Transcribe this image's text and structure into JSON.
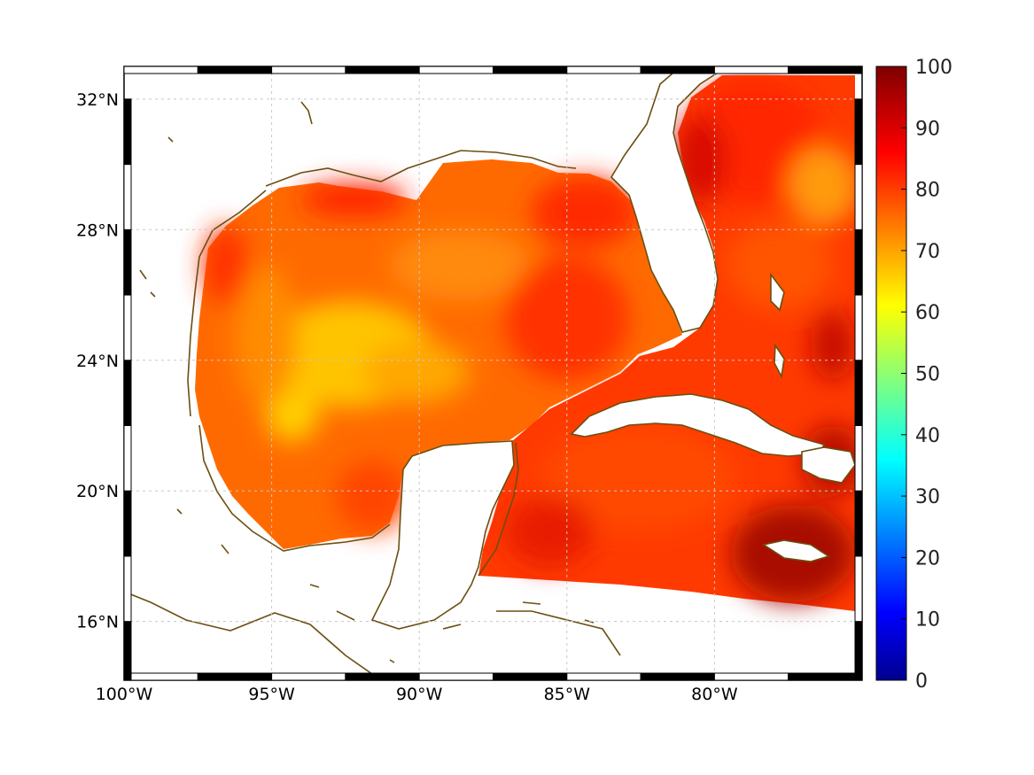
{
  "map": {
    "lon_range": [
      -100,
      -75
    ],
    "lat_range": [
      14.2,
      33
    ],
    "lon_ticks": [
      {
        "value": -100,
        "label": "100°W"
      },
      {
        "value": -95,
        "label": "95°W"
      },
      {
        "value": -90,
        "label": "90°W"
      },
      {
        "value": -85,
        "label": "85°W"
      },
      {
        "value": -80,
        "label": "80°W"
      }
    ],
    "lat_ticks": [
      {
        "value": 32,
        "label": "32°N"
      },
      {
        "value": 28,
        "label": "28°N"
      },
      {
        "value": 24,
        "label": "24°N"
      },
      {
        "value": 20,
        "label": "20°N"
      },
      {
        "value": 16,
        "label": "16°N"
      }
    ],
    "grid": true,
    "coast_color": "#6b4f12",
    "frame": "black-white checkered"
  },
  "colorbar": {
    "colormap": "jet",
    "range": [
      0,
      100
    ],
    "ticks": [
      "100",
      "90",
      "80",
      "70",
      "60",
      "50",
      "40",
      "30",
      "20",
      "10",
      "0"
    ]
  },
  "field_palette": {
    "low": "#ffd000",
    "mid": "#ff6a00",
    "high": "#ff2a00",
    "max": "#a80000"
  }
}
